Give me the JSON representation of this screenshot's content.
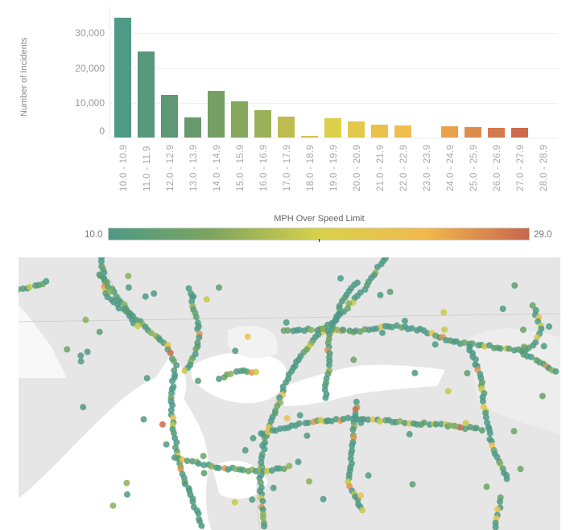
{
  "chart": {
    "ylabel": "Number of Incidents",
    "yticks": [
      "30,000",
      "20,000",
      "10,000",
      "0"
    ],
    "xticks": [
      "10.0 - 10.9",
      "11.0 - 11.9",
      "12.0 - 12.9",
      "13.0 - 13.9",
      "14.0 - 14.9",
      "15.0 - 15.9",
      "16.0 - 16.9",
      "17.0 - 17.9",
      "18.0 - 18.9",
      "19.0 - 19.9",
      "20.0 - 20.9",
      "21.0 - 21.9",
      "22.0 - 22.9",
      "23.0 - 23.9",
      "24.0 - 24.9",
      "25.0 - 25.9",
      "26.0 - 26.9",
      "27.0 - 27.9",
      "28.0 - 28.9"
    ]
  },
  "legend": {
    "title": "MPH Over Speed Limit",
    "min": "10.0",
    "max": "29.0",
    "colors": [
      "#4e9a86",
      "#7ea55e",
      "#d8d14a",
      "#f2b94b",
      "#c9664e"
    ]
  },
  "chart_data": {
    "type": "bar",
    "title": "",
    "xlabel": "",
    "ylabel": "Number of Incidents",
    "categories": [
      "10.0 - 10.9",
      "11.0 - 11.9",
      "12.0 - 12.9",
      "13.0 - 13.9",
      "14.0 - 14.9",
      "15.0 - 15.9",
      "16.0 - 16.9",
      "17.0 - 17.9",
      "18.0 - 18.9",
      "19.0 - 19.9",
      "20.0 - 20.9",
      "21.0 - 21.9",
      "22.0 - 22.9",
      "23.0 - 23.9",
      "24.0 - 24.9",
      "25.0 - 25.9",
      "26.0 - 26.9",
      "27.0 - 27.9",
      "28.0 - 28.9"
    ],
    "values": [
      34600,
      24800,
      12300,
      5900,
      13500,
      10400,
      8000,
      6100,
      500,
      5500,
      4700,
      3800,
      3600,
      0,
      3300,
      3000,
      2700,
      2700,
      0
    ],
    "colors": [
      "#4e9a86",
      "#58997c",
      "#5e9874",
      "#68996c",
      "#74a063",
      "#85a85c",
      "#9bb157",
      "#bcbc4f",
      "#cfc84a",
      "#dcd04a",
      "#e2c94c",
      "#e8c24d",
      "#f0bd4e",
      "#f2b94b",
      "#e9a14c",
      "#de8c4c",
      "#d47a4d",
      "#cc6a4e",
      "#c9664e"
    ],
    "ylim": [
      0,
      36000
    ],
    "yticks": [
      0,
      10000,
      20000,
      30000
    ],
    "grid": true,
    "legend": {
      "type": "color-gradient",
      "title": "MPH Over Speed Limit",
      "min": 10.0,
      "max": 29.0,
      "position": "between chart and map"
    }
  },
  "map": {
    "description": "Geographic map of incident points colored by MPH over speed limit"
  }
}
